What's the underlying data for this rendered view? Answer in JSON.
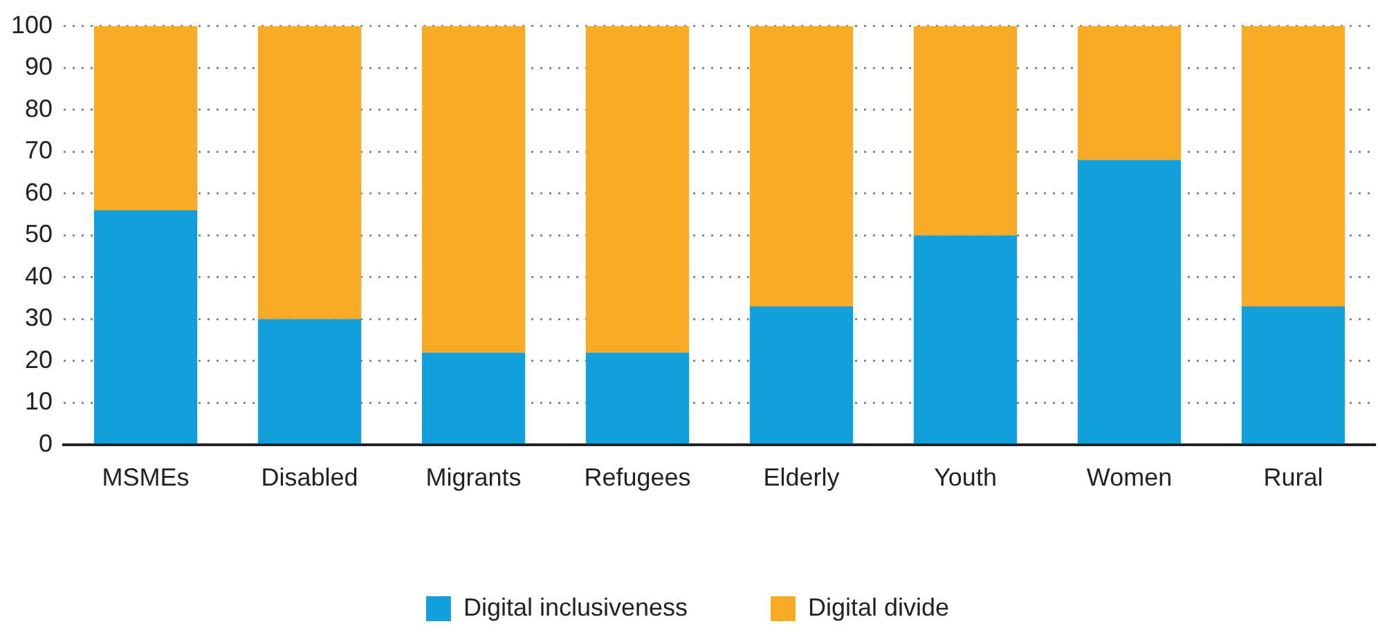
{
  "chart_data": {
    "type": "bar",
    "stacked": true,
    "categories": [
      "MSMEs",
      "Disabled",
      "Migrants",
      "Refugees",
      "Elderly",
      "Youth",
      "Women",
      "Rural"
    ],
    "series": [
      {
        "name": "Digital inclusiveness",
        "color": "#139fd9",
        "values": [
          56,
          30,
          22,
          22,
          33,
          50,
          68,
          33
        ]
      },
      {
        "name": "Digital divide",
        "color": "#f8ab27",
        "values": [
          44,
          70,
          78,
          78,
          67,
          50,
          32,
          67
        ]
      }
    ],
    "ylim": [
      0,
      100
    ],
    "yticks": [
      0,
      10,
      20,
      30,
      40,
      50,
      60,
      70,
      80,
      90,
      100
    ],
    "grid": "y",
    "legend": "bottom"
  }
}
